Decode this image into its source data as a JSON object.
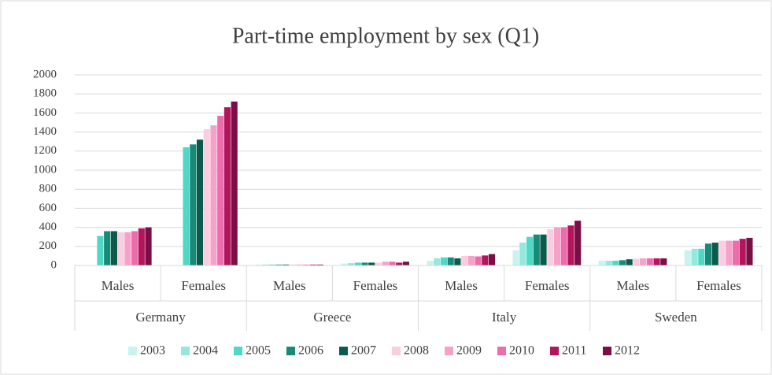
{
  "chart_data": {
    "type": "bar",
    "title": "Part-time employment by sex (Q1)",
    "categories": [
      "Males",
      "Females",
      "Males",
      "Females",
      "Males",
      "Females",
      "Males",
      "Females"
    ],
    "groups": [
      "Germany",
      "Greece",
      "Italy",
      "Sweden"
    ],
    "ylim": [
      0,
      2000
    ],
    "yticks": [
      0,
      200,
      400,
      600,
      800,
      1000,
      1200,
      1400,
      1600,
      1800,
      2000
    ],
    "grid": true,
    "legend": "bottom",
    "series": [
      {
        "name": "2003",
        "color": "#c9f3ee",
        "values": [
          null,
          null,
          10,
          20,
          50,
          160,
          50,
          160
        ]
      },
      {
        "name": "2004",
        "color": "#94e8dc",
        "values": [
          null,
          null,
          10,
          25,
          75,
          240,
          50,
          175
        ]
      },
      {
        "name": "2005",
        "color": "#4ed8c6",
        "values": [
          310,
          1240,
          10,
          30,
          85,
          300,
          50,
          175
        ]
      },
      {
        "name": "2006",
        "color": "#178a78",
        "values": [
          360,
          1270,
          10,
          30,
          85,
          325,
          55,
          230
        ]
      },
      {
        "name": "2007",
        "color": "#0b5a4c",
        "values": [
          360,
          1320,
          10,
          30,
          75,
          325,
          65,
          240
        ]
      },
      {
        "name": "2008",
        "color": "#fbcde0",
        "values": [
          350,
          1430,
          10,
          30,
          100,
          380,
          70,
          260
        ]
      },
      {
        "name": "2009",
        "color": "#f5a2c8",
        "values": [
          350,
          1470,
          10,
          40,
          100,
          400,
          75,
          260
        ]
      },
      {
        "name": "2010",
        "color": "#ec6dab",
        "values": [
          360,
          1570,
          10,
          40,
          95,
          400,
          75,
          260
        ]
      },
      {
        "name": "2011",
        "color": "#b3145c",
        "values": [
          390,
          1660,
          10,
          30,
          105,
          420,
          75,
          280
        ]
      },
      {
        "name": "2012",
        "color": "#7a0e45",
        "values": [
          400,
          1720,
          10,
          40,
          120,
          470,
          75,
          290
        ]
      }
    ]
  }
}
